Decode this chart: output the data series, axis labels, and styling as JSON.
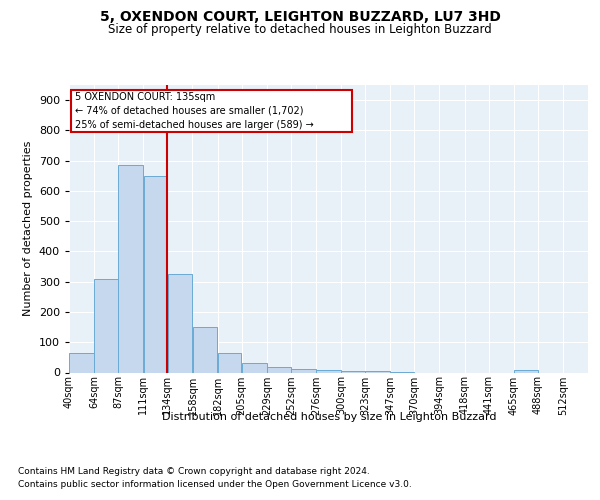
{
  "title": "5, OXENDON COURT, LEIGHTON BUZZARD, LU7 3HD",
  "subtitle": "Size of property relative to detached houses in Leighton Buzzard",
  "xlabel": "Distribution of detached houses by size in Leighton Buzzard",
  "ylabel": "Number of detached properties",
  "bar_color": "#c5d8ed",
  "bar_edge_color": "#6aaad4",
  "background_color": "#e8f0f8",
  "grid_color": "#ffffff",
  "annotation_line_color": "#cc0000",
  "annotation_box_color": "#cc0000",
  "annotation_text": "5 OXENDON COURT: 135sqm\n← 74% of detached houses are smaller (1,702)\n25% of semi-detached houses are larger (589) →",
  "property_line_x": 134,
  "footer_line1": "Contains HM Land Registry data © Crown copyright and database right 2024.",
  "footer_line2": "Contains public sector information licensed under the Open Government Licence v3.0.",
  "categories": [
    "40sqm",
    "64sqm",
    "87sqm",
    "111sqm",
    "134sqm",
    "158sqm",
    "182sqm",
    "205sqm",
    "229sqm",
    "252sqm",
    "276sqm",
    "300sqm",
    "323sqm",
    "347sqm",
    "370sqm",
    "394sqm",
    "418sqm",
    "441sqm",
    "465sqm",
    "488sqm",
    "512sqm"
  ],
  "bin_edges": [
    40,
    64,
    87,
    111,
    134,
    158,
    182,
    205,
    229,
    252,
    276,
    300,
    323,
    347,
    370,
    394,
    418,
    441,
    465,
    488,
    512
  ],
  "values": [
    65,
    310,
    685,
    650,
    327,
    150,
    65,
    30,
    18,
    10,
    8,
    5,
    5,
    3,
    0,
    0,
    0,
    0,
    7,
    0,
    0
  ],
  "ylim": [
    0,
    950
  ],
  "yticks": [
    0,
    100,
    200,
    300,
    400,
    500,
    600,
    700,
    800,
    900
  ]
}
